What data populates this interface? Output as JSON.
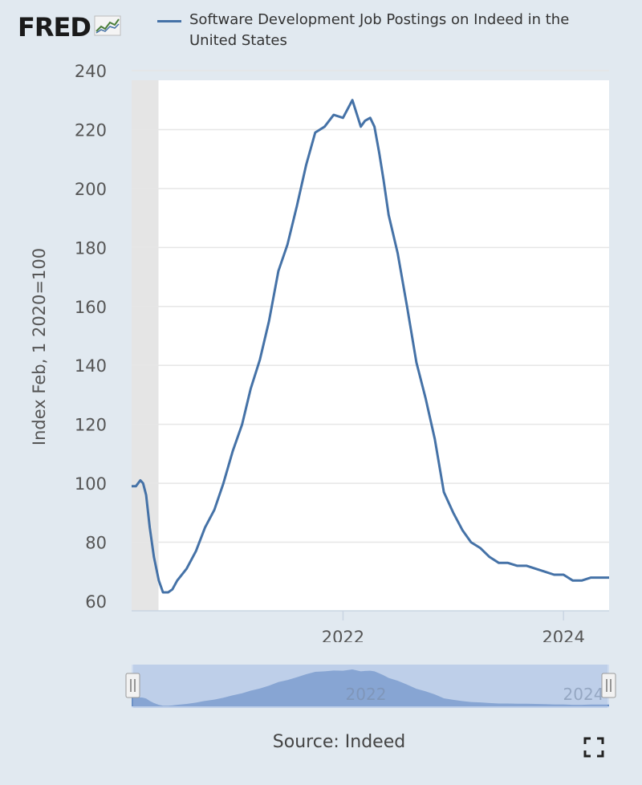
{
  "brand": {
    "logo_text": "FRED",
    "logo_icon": "trend-chart-icon"
  },
  "legend": {
    "label": "Software Development Job Postings on Indeed in the United States",
    "color": "#4572a7"
  },
  "source": "Source: Indeed",
  "fullscreen_icon": "fullscreen-expand-icon",
  "colors": {
    "background": "#e1e9f0",
    "plot_background": "#ffffff",
    "line": "#4572a7",
    "recession_shade": "#e5e5e5",
    "navigator_fill": "#b5c7e6",
    "navigator_series": "#5b84be"
  },
  "navigator": {
    "labels": [
      "2022",
      "2024"
    ]
  },
  "chart_data": {
    "type": "line",
    "title": "",
    "xlabel": "",
    "ylabel": "Index Feb, 1 2020=100",
    "ylim": [
      60,
      240
    ],
    "yticks": [
      60,
      80,
      100,
      120,
      140,
      160,
      180,
      200,
      220,
      240
    ],
    "xticks": [
      "2022",
      "2024"
    ],
    "x_range": [
      "2020-02-01",
      "2024-05-31"
    ],
    "grid": true,
    "recession_shading": [
      "2020-02-01",
      "2020-04-30"
    ],
    "series": [
      {
        "name": "Software Development Job Postings on Indeed in the United States",
        "x": [
          "2020-02-01",
          "2020-02-15",
          "2020-03-01",
          "2020-03-10",
          "2020-03-20",
          "2020-04-01",
          "2020-04-15",
          "2020-05-01",
          "2020-05-15",
          "2020-06-01",
          "2020-06-15",
          "2020-07-01",
          "2020-08-01",
          "2020-09-01",
          "2020-10-01",
          "2020-11-01",
          "2020-12-01",
          "2021-01-01",
          "2021-02-01",
          "2021-03-01",
          "2021-04-01",
          "2021-05-01",
          "2021-06-01",
          "2021-07-01",
          "2021-08-01",
          "2021-09-01",
          "2021-10-01",
          "2021-11-01",
          "2021-12-01",
          "2022-01-01",
          "2022-02-01",
          "2022-03-01",
          "2022-03-15",
          "2022-04-01",
          "2022-04-15",
          "2022-05-01",
          "2022-05-15",
          "2022-06-01",
          "2022-07-01",
          "2022-08-01",
          "2022-09-01",
          "2022-10-01",
          "2022-11-01",
          "2022-12-01",
          "2023-01-01",
          "2023-02-01",
          "2023-03-01",
          "2023-04-01",
          "2023-05-01",
          "2023-06-01",
          "2023-07-01",
          "2023-08-01",
          "2023-09-01",
          "2023-10-01",
          "2023-11-01",
          "2023-12-01",
          "2024-01-01",
          "2024-02-01",
          "2024-03-01",
          "2024-04-01",
          "2024-05-01",
          "2024-05-31"
        ],
        "values": [
          99,
          99,
          101,
          100,
          96,
          85,
          75,
          67,
          63,
          63,
          64,
          67,
          71,
          77,
          85,
          91,
          100,
          111,
          120,
          132,
          142,
          155,
          172,
          181,
          194,
          208,
          219,
          221,
          225,
          224,
          230,
          221,
          223,
          224,
          221,
          212,
          203,
          191,
          178,
          160,
          141,
          129,
          115,
          97,
          90,
          84,
          80,
          78,
          75,
          73,
          73,
          72,
          72,
          71,
          70,
          69,
          69,
          67,
          67,
          68,
          68,
          68
        ]
      }
    ]
  }
}
